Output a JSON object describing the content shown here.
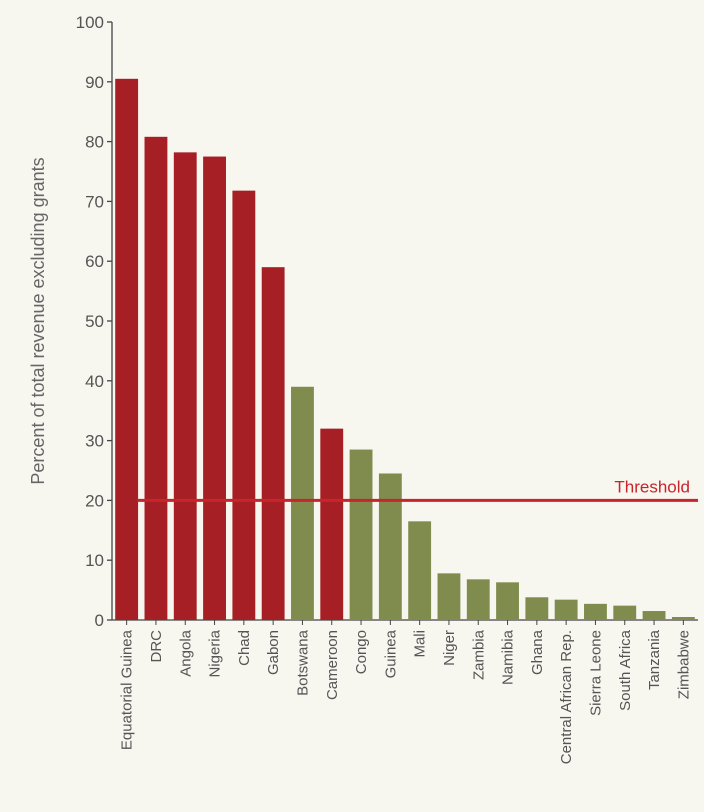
{
  "chart_data": {
    "type": "bar",
    "title": "",
    "xlabel": "",
    "ylabel": "Percent of total revenue excluding grants",
    "ylim": [
      0,
      100
    ],
    "yticks": [
      0,
      10,
      20,
      30,
      40,
      50,
      60,
      70,
      80,
      90,
      100
    ],
    "categories": [
      "Equatorial Guinea",
      "DRC",
      "Angola",
      "Nigeria",
      "Chad",
      "Gabon",
      "Botswana",
      "Cameroon",
      "Congo",
      "Guinea",
      "Mali",
      "Niger",
      "Zambia",
      "Namibia",
      "Ghana",
      "Central African Rep.",
      "Sierra Leone",
      "South Africa",
      "Tanzania",
      "Zimbabwe"
    ],
    "values": [
      90.5,
      80.8,
      78.2,
      77.5,
      71.8,
      59.0,
      39.0,
      32.0,
      28.5,
      24.5,
      16.5,
      7.8,
      6.8,
      6.3,
      3.8,
      3.4,
      2.7,
      2.4,
      1.5,
      0.5
    ],
    "bar_colors": [
      "#a51f24",
      "#a51f24",
      "#a51f24",
      "#a51f24",
      "#a51f24",
      "#a51f24",
      "#7f8c4e",
      "#a51f24",
      "#7f8c4e",
      "#7f8c4e",
      "#7f8c4e",
      "#7f8c4e",
      "#7f8c4e",
      "#7f8c4e",
      "#7f8c4e",
      "#7f8c4e",
      "#7f8c4e",
      "#7f8c4e",
      "#7f8c4e",
      "#7f8c4e"
    ],
    "threshold": {
      "value": 20,
      "label": "Threshold",
      "color": "#c8242c"
    },
    "grid": false,
    "legend": "none"
  }
}
